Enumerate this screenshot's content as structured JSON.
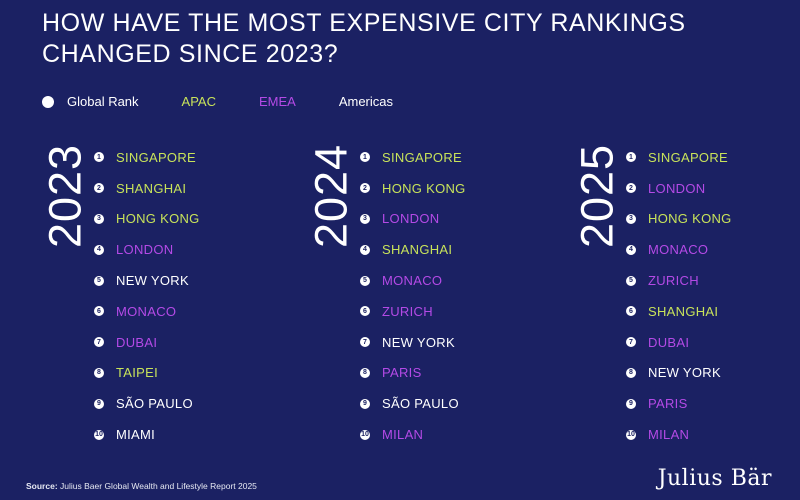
{
  "title": {
    "line1": "HOW HAVE THE MOST EXPENSIVE CITY RANKINGS",
    "line2": "CHANGED SINCE 2023?"
  },
  "legend": {
    "global_rank": "Global Rank",
    "apac": "APAC",
    "emea": "EMEA",
    "americas": "Americas"
  },
  "colors": {
    "background": "#1b2163",
    "APAC": "#c8e35a",
    "EMEA": "#b44ae6",
    "Americas": "#ffffff"
  },
  "rankings": [
    {
      "year": "2023",
      "cities": [
        {
          "rank": "1",
          "name": "SINGAPORE",
          "region": "APAC"
        },
        {
          "rank": "2",
          "name": "SHANGHAI",
          "region": "APAC"
        },
        {
          "rank": "3",
          "name": "HONG KONG",
          "region": "APAC"
        },
        {
          "rank": "4",
          "name": "LONDON",
          "region": "EMEA"
        },
        {
          "rank": "5",
          "name": "NEW YORK",
          "region": "Americas"
        },
        {
          "rank": "6",
          "name": "MONACO",
          "region": "EMEA"
        },
        {
          "rank": "7",
          "name": "DUBAI",
          "region": "EMEA"
        },
        {
          "rank": "8",
          "name": "TAIPEI",
          "region": "APAC"
        },
        {
          "rank": "9",
          "name": "SÃO PAULO",
          "region": "Americas"
        },
        {
          "rank": "10",
          "name": "MIAMI",
          "region": "Americas"
        }
      ]
    },
    {
      "year": "2024",
      "cities": [
        {
          "rank": "1",
          "name": "SINGAPORE",
          "region": "APAC"
        },
        {
          "rank": "2",
          "name": "HONG KONG",
          "region": "APAC"
        },
        {
          "rank": "3",
          "name": "LONDON",
          "region": "EMEA"
        },
        {
          "rank": "4",
          "name": "SHANGHAI",
          "region": "APAC"
        },
        {
          "rank": "5",
          "name": "MONACO",
          "region": "EMEA"
        },
        {
          "rank": "6",
          "name": "ZURICH",
          "region": "EMEA"
        },
        {
          "rank": "7",
          "name": "NEW YORK",
          "region": "Americas"
        },
        {
          "rank": "8",
          "name": "PARIS",
          "region": "EMEA"
        },
        {
          "rank": "9",
          "name": "SÃO PAULO",
          "region": "Americas"
        },
        {
          "rank": "10",
          "name": "MILAN",
          "region": "EMEA"
        }
      ]
    },
    {
      "year": "2025",
      "cities": [
        {
          "rank": "1",
          "name": "SINGAPORE",
          "region": "APAC"
        },
        {
          "rank": "2",
          "name": "LONDON",
          "region": "EMEA"
        },
        {
          "rank": "3",
          "name": "HONG KONG",
          "region": "APAC"
        },
        {
          "rank": "4",
          "name": "MONACO",
          "region": "EMEA"
        },
        {
          "rank": "5",
          "name": "ZURICH",
          "region": "EMEA"
        },
        {
          "rank": "6",
          "name": "SHANGHAI",
          "region": "APAC"
        },
        {
          "rank": "7",
          "name": "DUBAI",
          "region": "EMEA"
        },
        {
          "rank": "8",
          "name": "NEW YORK",
          "region": "Americas"
        },
        {
          "rank": "9",
          "name": "PARIS",
          "region": "EMEA"
        },
        {
          "rank": "10",
          "name": "MILAN",
          "region": "EMEA"
        }
      ]
    }
  ],
  "source": {
    "label": "Source:",
    "text": "Julius Baer Global Wealth and Lifestyle Report 2025"
  },
  "logo": "Julius Bär"
}
